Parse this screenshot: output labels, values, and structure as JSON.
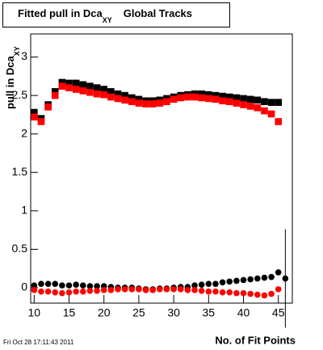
{
  "chart_data": {
    "type": "scatter",
    "title": "Fitted pull in Dca",
    "title_subscript": "XY",
    "title_suffix": "Global Tracks",
    "y_label": "pull in Dca",
    "y_label_subscript": "XY",
    "x_label": "No. of Fit Points",
    "footer": "Fri Oct 28 17:11:43 2011",
    "xlim": [
      9.5,
      47
    ],
    "ylim": [
      -0.2,
      3.3
    ],
    "xticks": [
      10,
      15,
      20,
      25,
      30,
      35,
      40,
      45
    ],
    "yticks": [
      0,
      0.5,
      1,
      1.5,
      2,
      2.5,
      3
    ],
    "series": [
      {
        "color": "#000000",
        "marker": "square",
        "x": [
          10,
          11,
          12,
          13,
          14,
          15,
          16,
          17,
          18,
          19,
          20,
          21,
          22,
          23,
          24,
          25,
          26,
          27,
          28,
          29,
          30,
          31,
          32,
          33,
          34,
          35,
          36,
          37,
          38,
          39,
          40,
          41,
          42,
          43,
          44,
          45
        ],
        "values": [
          2.28,
          2.2,
          2.38,
          2.55,
          2.67,
          2.66,
          2.66,
          2.64,
          2.62,
          2.6,
          2.58,
          2.55,
          2.52,
          2.5,
          2.47,
          2.45,
          2.43,
          2.43,
          2.44,
          2.46,
          2.48,
          2.5,
          2.51,
          2.52,
          2.52,
          2.51,
          2.5,
          2.49,
          2.48,
          2.47,
          2.46,
          2.45,
          2.44,
          2.42,
          2.41,
          2.41
        ]
      },
      {
        "color": "#ff0000",
        "marker": "square",
        "x": [
          10,
          11,
          12,
          13,
          14,
          15,
          16,
          17,
          18,
          19,
          20,
          21,
          22,
          23,
          24,
          25,
          26,
          27,
          28,
          29,
          30,
          31,
          32,
          33,
          34,
          35,
          36,
          37,
          38,
          39,
          40,
          41,
          42,
          43,
          44,
          45
        ],
        "values": [
          2.22,
          2.16,
          2.35,
          2.5,
          2.62,
          2.6,
          2.58,
          2.56,
          2.54,
          2.52,
          2.51,
          2.48,
          2.46,
          2.44,
          2.42,
          2.4,
          2.39,
          2.39,
          2.4,
          2.42,
          2.45,
          2.47,
          2.48,
          2.48,
          2.47,
          2.46,
          2.45,
          2.43,
          2.42,
          2.4,
          2.38,
          2.36,
          2.34,
          2.3,
          2.26,
          2.16
        ]
      },
      {
        "color": "#000000",
        "marker": "circle",
        "x": [
          10,
          11,
          12,
          13,
          14,
          15,
          16,
          17,
          18,
          19,
          20,
          21,
          22,
          23,
          24,
          25,
          26,
          27,
          28,
          29,
          30,
          31,
          32,
          33,
          34,
          35,
          36,
          37,
          38,
          39,
          40,
          41,
          42,
          43,
          44,
          45,
          46
        ],
        "values": [
          0.03,
          0.05,
          0.05,
          0.05,
          0.03,
          0.03,
          0.04,
          0.03,
          0.02,
          0.02,
          0.02,
          0.01,
          0.0,
          0.0,
          0.0,
          -0.01,
          -0.02,
          -0.02,
          -0.01,
          -0.01,
          0.0,
          0.01,
          0.01,
          0.03,
          0.04,
          0.05,
          0.05,
          0.07,
          0.08,
          0.09,
          0.1,
          0.11,
          0.12,
          0.13,
          0.14,
          0.2,
          0.12
        ],
        "errors": [
          null,
          null,
          null,
          null,
          null,
          null,
          null,
          null,
          null,
          null,
          null,
          null,
          null,
          null,
          null,
          null,
          null,
          null,
          null,
          null,
          null,
          null,
          null,
          null,
          null,
          null,
          null,
          null,
          null,
          null,
          null,
          null,
          null,
          null,
          null,
          null,
          0.64
        ]
      },
      {
        "color": "#ff0000",
        "marker": "circle",
        "x": [
          10,
          11,
          12,
          13,
          14,
          15,
          16,
          17,
          18,
          19,
          20,
          21,
          22,
          23,
          24,
          25,
          26,
          27,
          28,
          29,
          30,
          31,
          32,
          33,
          34,
          35,
          36,
          37,
          38,
          39,
          40,
          41,
          42,
          43,
          44,
          45
        ],
        "values": [
          -0.03,
          -0.05,
          -0.05,
          -0.06,
          -0.07,
          -0.06,
          -0.05,
          -0.05,
          -0.04,
          -0.04,
          -0.03,
          -0.03,
          -0.02,
          -0.02,
          -0.02,
          -0.02,
          -0.03,
          -0.03,
          -0.02,
          -0.02,
          -0.02,
          -0.02,
          -0.03,
          -0.03,
          -0.04,
          -0.05,
          -0.05,
          -0.06,
          -0.06,
          -0.07,
          -0.07,
          -0.08,
          -0.09,
          -0.1,
          -0.08,
          -0.02
        ]
      }
    ]
  }
}
